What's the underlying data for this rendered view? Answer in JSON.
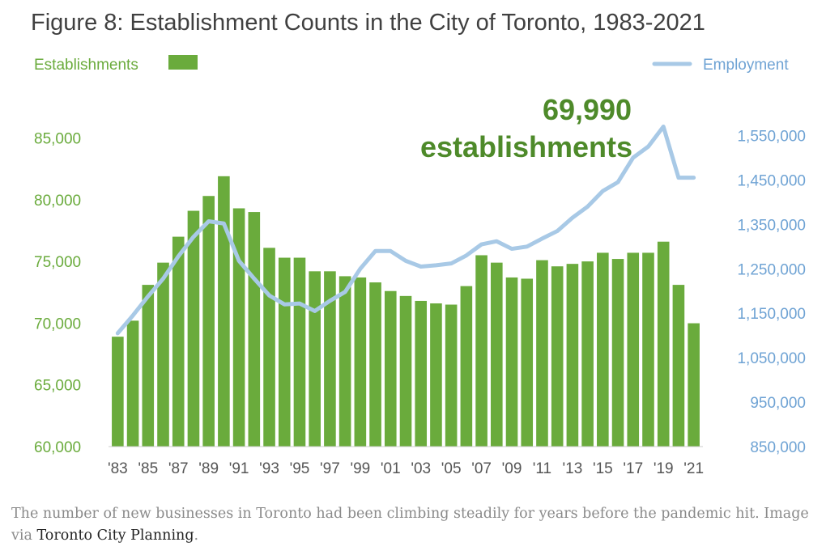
{
  "chart_data": {
    "type": "bar",
    "title": "Figure 8: Establishment Counts in the City of Toronto, 1983-2021",
    "categories": [
      "1983",
      "1984",
      "1985",
      "1986",
      "1987",
      "1988",
      "1989",
      "1990",
      "1991",
      "1992",
      "1993",
      "1994",
      "1995",
      "1996",
      "1997",
      "1998",
      "1999",
      "2000",
      "2001",
      "2002",
      "2003",
      "2004",
      "2005",
      "2006",
      "2007",
      "2008",
      "2009",
      "2010",
      "2011",
      "2012",
      "2013",
      "2014",
      "2015",
      "2016",
      "2017",
      "2018",
      "2019",
      "2020",
      "2021"
    ],
    "xtick_labels": [
      "'83",
      "'85",
      "'87",
      "'89",
      "'91",
      "'93",
      "'95",
      "'97",
      "'99",
      "'01",
      "'03",
      "'05",
      "'07",
      "'09",
      "'11",
      "'13",
      "'15",
      "'17",
      "'19",
      "'21"
    ],
    "series": [
      {
        "name": "Establishments",
        "type": "bar",
        "axis": "left",
        "color": "#6aab3c",
        "values": [
          68900,
          70200,
          73100,
          74900,
          77000,
          79100,
          80300,
          81900,
          79300,
          79000,
          76100,
          75300,
          75300,
          74200,
          74200,
          73800,
          73700,
          73300,
          72600,
          72200,
          71800,
          71600,
          71500,
          73000,
          75500,
          74900,
          73700,
          73600,
          75100,
          74600,
          74800,
          75000,
          75700,
          75200,
          75700,
          75700,
          76600,
          73100,
          69990
        ]
      },
      {
        "name": "Employment",
        "type": "line",
        "axis": "right",
        "color": "#a8c9e6",
        "values": [
          1105000,
          1145000,
          1188000,
          1228000,
          1278000,
          1322000,
          1357000,
          1352000,
          1268000,
          1228000,
          1190000,
          1170000,
          1172000,
          1155000,
          1178000,
          1198000,
          1250000,
          1290000,
          1290000,
          1268000,
          1255000,
          1258000,
          1262000,
          1280000,
          1305000,
          1312000,
          1295000,
          1300000,
          1318000,
          1335000,
          1365000,
          1390000,
          1425000,
          1445000,
          1500000,
          1525000,
          1570000,
          1455000,
          1455000
        ]
      }
    ],
    "yleft": {
      "label": "Establishments",
      "lim": [
        60000,
        87000
      ],
      "ticks": [
        "60,000",
        "65,000",
        "70,000",
        "75,000",
        "80,000",
        "85,000"
      ],
      "tick_values": [
        60000,
        65000,
        70000,
        75000,
        80000,
        85000
      ]
    },
    "yright": {
      "label": "Employment",
      "lim": [
        850000,
        1600000
      ],
      "ticks": [
        "850,000",
        "950,000",
        "1,050,000",
        "1,150,000",
        "1,250,000",
        "1,350,000",
        "1,450,000",
        "1,550,000"
      ],
      "tick_values": [
        850000,
        950000,
        1050000,
        1150000,
        1250000,
        1350000,
        1450000,
        1550000
      ]
    },
    "legend": {
      "establishments": "Establishments",
      "employment": "Employment"
    },
    "annotation": {
      "value": "69,990",
      "label": "establishments"
    },
    "grid": false
  },
  "caption": {
    "text": "The number of new businesses in Toronto had been climbing steadily for years before the pandemic hit. Image via ",
    "link_text": "Toronto City Planning",
    "suffix": "."
  }
}
